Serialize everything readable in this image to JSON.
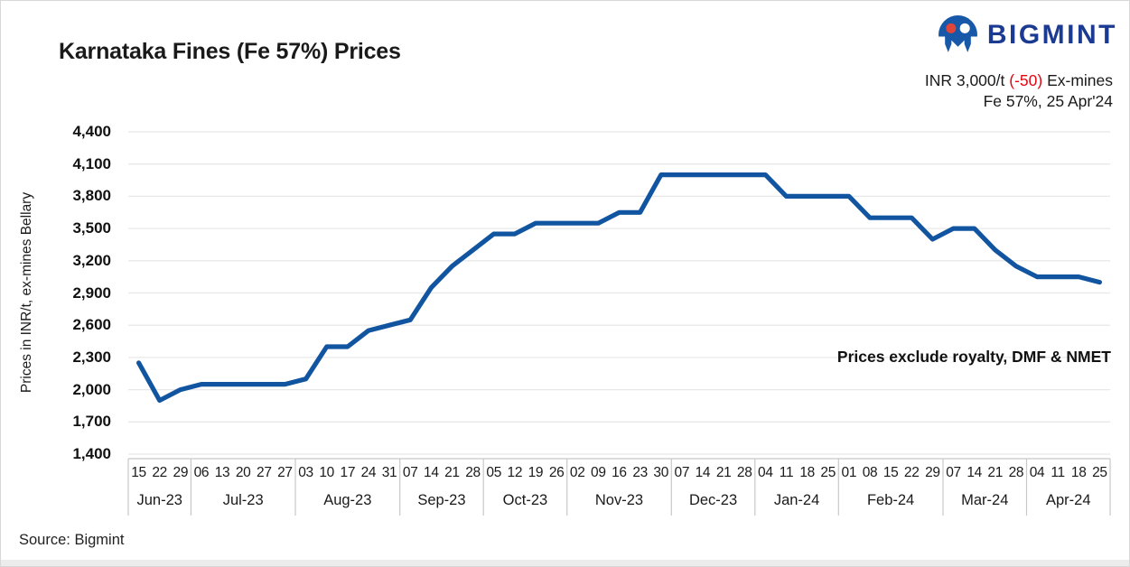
{
  "header": {
    "title": "Karnataka Fines (Fe 57%) Prices",
    "logo_text": "BIGMINT",
    "price_prefix": "INR 3,000/t ",
    "price_change": "(-50)",
    "price_suffix": " Ex-mines",
    "spec_line": "Fe 57%, 25 Apr'24"
  },
  "footer": {
    "source": "Source: Bigmint"
  },
  "colors": {
    "line": "#1155a0",
    "logo_navy": "#1b3a91",
    "logo_blue": "#1758a8",
    "logo_red": "#e0453a",
    "negative_red": "#e30613",
    "gridline": "#e8e8e8",
    "axis": "#c8c8c8",
    "text": "#1a1a1a"
  },
  "chart_data": {
    "type": "line",
    "title": "Karnataka Fines (Fe 57%) Prices",
    "series_name": "Karnataka fines Fe 57% price, INR/t ex-mines Bellary",
    "ylabel": "Prices in INR/t, ex-mines Bellary",
    "ylim": [
      1400,
      4400
    ],
    "ytick_step": 300,
    "ytick_labels": [
      "4,400",
      "4,100",
      "3,800",
      "3,500",
      "3,200",
      "2,900",
      "2,600",
      "2,300",
      "2,000",
      "1,700",
      "1,400"
    ],
    "grid": "horizontal-only",
    "legend": "none",
    "annotation": "Prices exclude royalty, DMF & NMET",
    "months": [
      {
        "label": "Jun-23",
        "days": [
          "15",
          "22",
          "29"
        ],
        "values": [
          2250,
          1900,
          2000
        ]
      },
      {
        "label": "Jul-23",
        "days": [
          "06",
          "13",
          "20",
          "27",
          "27"
        ],
        "values": [
          2050,
          2050,
          2050,
          2050,
          2050
        ]
      },
      {
        "label": "Aug-23",
        "days": [
          "03",
          "10",
          "17",
          "24",
          "31"
        ],
        "values": [
          2100,
          2400,
          2400,
          2550,
          2600
        ]
      },
      {
        "label": "Sep-23",
        "days": [
          "07",
          "14",
          "21",
          "28"
        ],
        "values": [
          2650,
          2950,
          3150,
          3300
        ]
      },
      {
        "label": "Oct-23",
        "days": [
          "05",
          "12",
          "19",
          "26"
        ],
        "values": [
          3450,
          3450,
          3550,
          3550
        ]
      },
      {
        "label": "Nov-23",
        "days": [
          "02",
          "09",
          "16",
          "23",
          "30"
        ],
        "values": [
          3550,
          3550,
          3650,
          3650,
          4000
        ]
      },
      {
        "label": "Dec-23",
        "days": [
          "07",
          "14",
          "21",
          "28"
        ],
        "values": [
          4000,
          4000,
          4000,
          4000
        ]
      },
      {
        "label": "Jan-24",
        "days": [
          "04",
          "11",
          "18",
          "25"
        ],
        "values": [
          4000,
          3800,
          3800,
          3800
        ]
      },
      {
        "label": "Feb-24",
        "days": [
          "01",
          "08",
          "15",
          "22",
          "29"
        ],
        "values": [
          3800,
          3600,
          3600,
          3600,
          3400
        ]
      },
      {
        "label": "Mar-24",
        "days": [
          "07",
          "14",
          "21",
          "28"
        ],
        "values": [
          3500,
          3500,
          3300,
          3150
        ]
      },
      {
        "label": "Apr-24",
        "days": [
          "04",
          "11",
          "18",
          "25"
        ],
        "values": [
          3050,
          3050,
          3050,
          3000
        ]
      }
    ]
  }
}
